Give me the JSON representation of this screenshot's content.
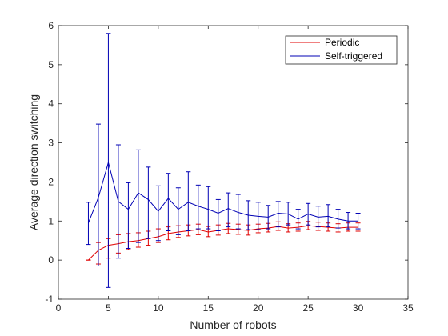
{
  "chart_data": {
    "type": "line",
    "xlabel": "Number of robots",
    "ylabel": "Average direction switching",
    "xlim": [
      0,
      35
    ],
    "ylim": [
      -1,
      6
    ],
    "xticks": [
      0,
      5,
      10,
      15,
      20,
      25,
      30,
      35
    ],
    "yticks": [
      -1,
      0,
      1,
      2,
      3,
      4,
      5,
      6
    ],
    "grid": false,
    "legend_position": "top-right",
    "x": [
      3,
      4,
      5,
      6,
      7,
      8,
      9,
      10,
      11,
      12,
      13,
      14,
      15,
      16,
      17,
      18,
      19,
      20,
      21,
      22,
      23,
      24,
      25,
      26,
      27,
      28,
      29,
      30
    ],
    "series": [
      {
        "name": "Periodic",
        "color": "#e00000",
        "values": [
          0.0,
          0.25,
          0.38,
          0.42,
          0.47,
          0.5,
          0.55,
          0.6,
          0.68,
          0.72,
          0.75,
          0.78,
          0.72,
          0.76,
          0.8,
          0.78,
          0.76,
          0.8,
          0.82,
          0.86,
          0.82,
          0.84,
          0.88,
          0.86,
          0.84,
          0.82,
          0.84,
          0.84
        ],
        "lower": [
          0.0,
          -0.1,
          0.05,
          0.18,
          0.27,
          0.33,
          0.38,
          0.45,
          0.52,
          0.58,
          0.62,
          0.65,
          0.6,
          0.64,
          0.68,
          0.66,
          0.64,
          0.7,
          0.72,
          0.76,
          0.72,
          0.74,
          0.78,
          0.76,
          0.74,
          0.72,
          0.74,
          0.74
        ],
        "upper": [
          0.0,
          0.45,
          0.55,
          0.65,
          0.68,
          0.7,
          0.74,
          0.8,
          0.85,
          0.88,
          0.9,
          0.92,
          0.86,
          0.9,
          0.94,
          0.92,
          0.9,
          0.92,
          0.94,
          0.98,
          0.93,
          0.95,
          0.99,
          0.97,
          0.95,
          0.93,
          0.95,
          0.95
        ]
      },
      {
        "name": "Self-triggered",
        "color": "#0000b4",
        "values": [
          0.95,
          1.6,
          2.5,
          1.5,
          1.3,
          1.72,
          1.55,
          1.25,
          1.58,
          1.3,
          1.48,
          1.38,
          1.3,
          1.2,
          1.32,
          1.22,
          1.15,
          1.12,
          1.1,
          1.2,
          1.18,
          1.05,
          1.18,
          1.1,
          1.12,
          1.05,
          1.0,
          1.0
        ],
        "lower": [
          0.4,
          -0.15,
          -0.7,
          0.05,
          0.3,
          0.45,
          0.55,
          0.5,
          0.75,
          0.65,
          0.75,
          0.8,
          0.8,
          0.75,
          0.85,
          0.8,
          0.78,
          0.78,
          0.8,
          0.85,
          0.9,
          0.8,
          0.9,
          0.85,
          0.85,
          0.82,
          0.8,
          0.8
        ],
        "upper": [
          1.48,
          3.48,
          5.8,
          2.95,
          1.98,
          2.82,
          2.38,
          1.9,
          2.22,
          1.85,
          2.26,
          1.92,
          1.88,
          1.55,
          1.72,
          1.68,
          1.52,
          1.48,
          1.4,
          1.5,
          1.48,
          1.3,
          1.45,
          1.38,
          1.42,
          1.3,
          1.22,
          1.2
        ]
      }
    ]
  }
}
